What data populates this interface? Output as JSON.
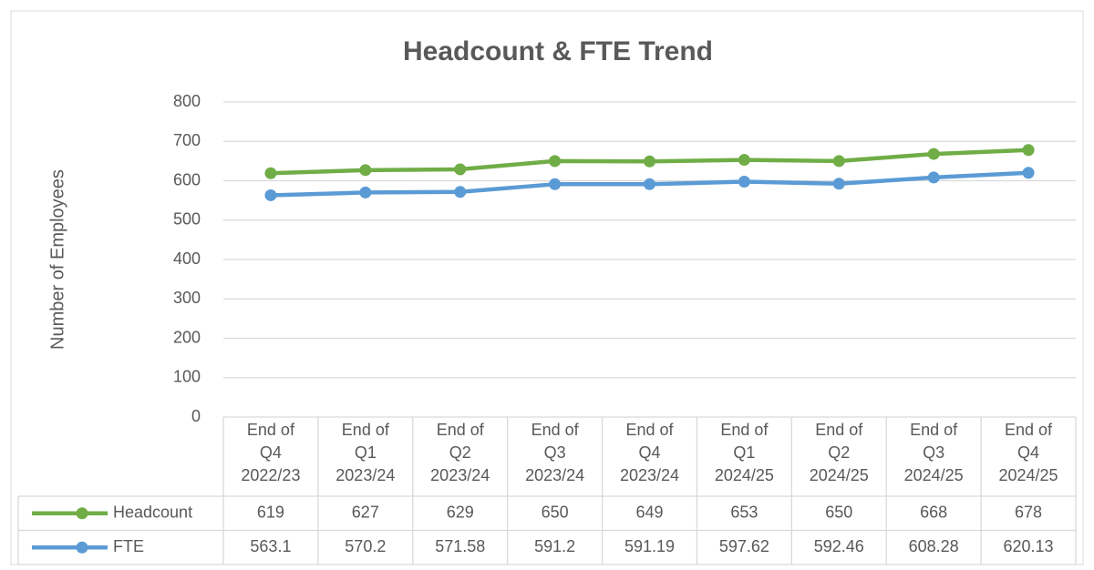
{
  "chart_data": {
    "type": "line",
    "title": "Headcount & FTE Trend",
    "y_label": "Number of Employees",
    "categories": [
      "End of Q4 2022/23",
      "End of Q1 2023/24",
      "End of Q2 2023/24",
      "End of Q3 2023/24",
      "End of Q4 2023/24",
      "End of Q1 2024/25",
      "End of Q2 2024/25",
      "End of Q3 2024/25",
      "End of Q4 2024/25"
    ],
    "series": [
      {
        "name": "Headcount",
        "color": "#70ad47",
        "values": [
          619,
          627,
          629,
          650,
          649,
          653,
          650,
          668,
          678
        ]
      },
      {
        "name": "FTE",
        "color": "#5b9bd5",
        "values": [
          563.1,
          570.2,
          571.58,
          591.2,
          591.19,
          597.62,
          592.46,
          608.28,
          620.13
        ]
      }
    ],
    "ylim": [
      0,
      800
    ],
    "yticks": [
      0,
      100,
      200,
      300,
      400,
      500,
      600,
      700,
      800
    ],
    "grid": true,
    "data_table": true
  }
}
